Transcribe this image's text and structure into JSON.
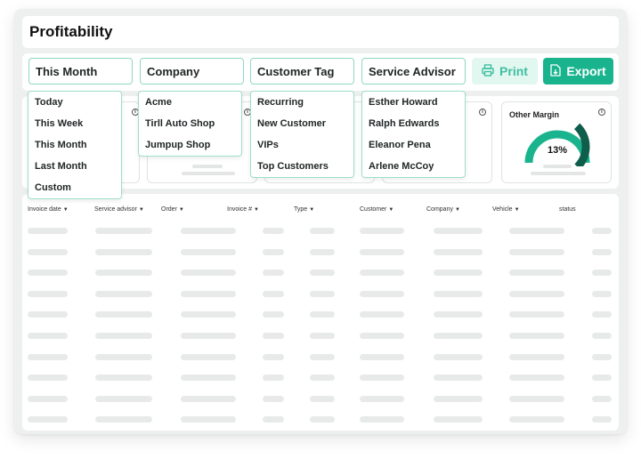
{
  "page": {
    "title": "Profitability"
  },
  "filters": [
    {
      "label": "This Month",
      "options": [
        "Today",
        "This Week",
        "This Month",
        "Last Month",
        "Custom"
      ]
    },
    {
      "label": "Company",
      "options": [
        "Acme",
        "Tirll Auto Shop",
        "Jumpup Shop"
      ]
    },
    {
      "label": "Customer Tag",
      "options": [
        "Recurring",
        "New Customer",
        "VIPs",
        "Top Customers"
      ]
    },
    {
      "label": "Service Advisor",
      "options": [
        "Esther Howard",
        "Ralph Edwards",
        "Eleanor Pena",
        "Arlene McCoy"
      ]
    }
  ],
  "actions": {
    "print_label": "Print",
    "export_label": "Export"
  },
  "cards": {
    "other_margin": {
      "title": "Other Margin",
      "value": "13%",
      "percent": 13
    }
  },
  "table": {
    "columns": [
      "Invoice date",
      "Service advisor",
      "Order",
      "Invoice #",
      "Type",
      "Customer",
      "Company",
      "Vehicle",
      "status"
    ],
    "sortable": [
      true,
      true,
      true,
      true,
      true,
      true,
      true,
      true,
      false
    ]
  },
  "colors": {
    "accent": "#19b48e",
    "accent_light": "#e3f7f1",
    "border": "#8fd8c4",
    "gauge_dark": "#0f5e4c"
  },
  "icons": {
    "print": "printer-icon",
    "export": "file-export-icon",
    "info": "info-icon"
  }
}
